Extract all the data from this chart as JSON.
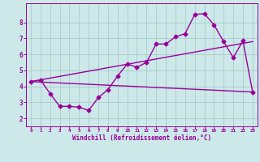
{
  "bg_color": "#cce8e8",
  "line_color": "#990099",
  "grid_color": "#aacccc",
  "xlabel": "Windchill (Refroidissement éolien,°C)",
  "xlabel_color": "#990099",
  "tick_color": "#990099",
  "x_ticks": [
    0,
    1,
    2,
    3,
    4,
    5,
    6,
    7,
    8,
    9,
    10,
    11,
    12,
    13,
    14,
    15,
    16,
    17,
    18,
    19,
    20,
    21,
    22,
    23
  ],
  "ylim": [
    1.5,
    9.2
  ],
  "xlim": [
    -0.5,
    23.5
  ],
  "line1_x": [
    0,
    1,
    2,
    3,
    4,
    5,
    6,
    7,
    8,
    9,
    10,
    11,
    12,
    13,
    14,
    15,
    16,
    17,
    18,
    19,
    20,
    21,
    22,
    23
  ],
  "line1_y": [
    4.3,
    4.4,
    3.55,
    2.75,
    2.75,
    2.7,
    2.5,
    3.3,
    3.8,
    4.65,
    5.4,
    5.2,
    5.5,
    6.65,
    6.65,
    7.1,
    7.3,
    8.5,
    8.55,
    7.85,
    6.8,
    5.8,
    6.85,
    3.65
  ],
  "line2_x": [
    0,
    23
  ],
  "line2_y": [
    4.3,
    6.8
  ],
  "line3_x": [
    0,
    23
  ],
  "line3_y": [
    4.3,
    3.65
  ],
  "y_ticks": [
    2,
    3,
    4,
    5,
    6,
    7,
    8
  ],
  "marker_size": 2.5,
  "line_width": 1.0
}
